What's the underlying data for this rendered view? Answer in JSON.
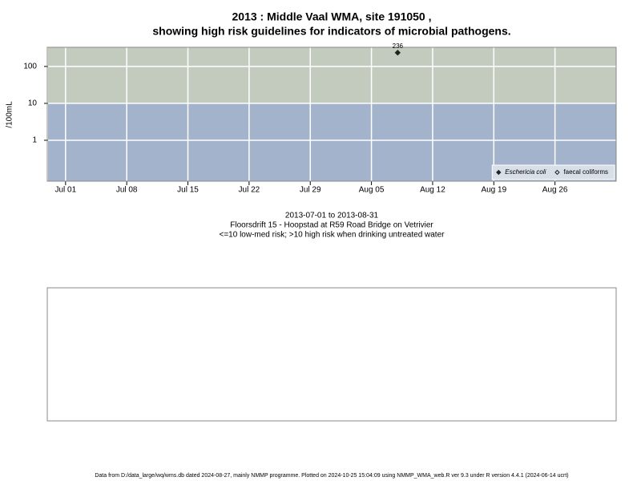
{
  "chart_data": {
    "type": "scatter",
    "title": [
      "2013 : Middle Vaal WMA, site 191050 ,",
      "showing high risk guidelines for indicators of microbial pathogens."
    ],
    "y_label": "/100mL",
    "x_is_date": true,
    "xlim": [
      "2013-06-29",
      "2013-09-02"
    ],
    "xticks": [
      {
        "value": "2013-07-01",
        "label": "Jul 01"
      },
      {
        "value": "2013-07-08",
        "label": "Jul 08"
      },
      {
        "value": "2013-07-15",
        "label": "Jul 15"
      },
      {
        "value": "2013-07-22",
        "label": "Jul 22"
      },
      {
        "value": "2013-07-29",
        "label": "Jul 29"
      },
      {
        "value": "2013-08-05",
        "label": "Aug 05"
      },
      {
        "value": "2013-08-12",
        "label": "Aug 12"
      },
      {
        "value": "2013-08-19",
        "label": "Aug 19"
      },
      {
        "value": "2013-08-26",
        "label": "Aug 26"
      }
    ],
    "ylim": [
      0.078,
      330
    ],
    "yticks": [
      1,
      10,
      100
    ],
    "log_y": true,
    "grid": true,
    "risk_threshold": 10,
    "band_colors": {
      "low": "#a3b3cc",
      "high": "#c3cbbf"
    },
    "series": [
      {
        "name": "Eschericia coli",
        "color": "#222222",
        "marker": "filled-diamond",
        "x": [
          "2013-08-08"
        ],
        "values": [
          236
        ]
      },
      {
        "name": "faecal coliforms",
        "color": "#222222",
        "marker": "open-diamond",
        "x": [],
        "values": []
      }
    ],
    "legend": "lower right",
    "notes": [
      "2013-07-01 to 2013-08-31",
      "Floorsdrift 15 - Hoopstad at R59 Road Bridge on Vetrivier",
      "<=10 low-med risk; >10 high risk when drinking untreated water"
    ],
    "footer": "Data from D:/data_large/wq/wms.db dated 2024-08-27, mainly NMMP programme. Plotted on 2024-10-25 15:04:09 using NMMP_WMA_web.R ver 9.3 under R version 4.4.1 (2024-06-14 ucrt)"
  }
}
